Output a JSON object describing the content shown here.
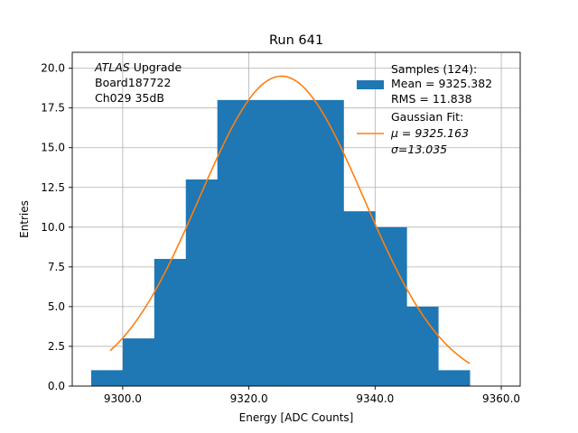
{
  "chart_data": {
    "type": "bar",
    "title": "Run 641",
    "xlabel": "Energy [ADC Counts]",
    "ylabel": "Entries",
    "xlim": [
      9292,
      9363
    ],
    "ylim": [
      0,
      21
    ],
    "grid": true,
    "xticks": [
      9300,
      9320,
      9340,
      9360
    ],
    "xtick_labels": [
      "9300.0",
      "9320.0",
      "9340.0",
      "9360.0"
    ],
    "yticks": [
      0,
      2.5,
      5,
      7.5,
      10,
      12.5,
      15,
      17.5,
      20
    ],
    "ytick_labels": [
      "0.0",
      "2.5",
      "5.0",
      "7.5",
      "10.0",
      "12.5",
      "15.0",
      "17.5",
      "20.0"
    ],
    "histogram": {
      "name": "Samples (124)",
      "color": "#1f77b4",
      "bin_edges": [
        9295,
        9300,
        9305,
        9310,
        9315,
        9320,
        9325,
        9330,
        9335,
        9340,
        9345,
        9350,
        9355
      ],
      "counts": [
        1,
        3,
        8,
        13,
        18,
        18,
        18,
        18,
        11,
        10,
        5,
        1
      ]
    },
    "fit": {
      "name": "Gaussian Fit",
      "color": "#ff7f0e",
      "mu": 9325.163,
      "sigma": 13.035,
      "amplitude": 19.5,
      "x_range": [
        9298,
        9355
      ]
    },
    "legend": {
      "placement": "top-right",
      "samples_title": "Samples (124):",
      "samples_mean": " Mean = 9325.382",
      "samples_rms": " RMS = 11.838",
      "fit_title": "Gaussian Fit:",
      "fit_mu": " μ = 9325.163",
      "fit_sigma": " σ=13.035"
    },
    "annotation": {
      "experiment": "ATLAS",
      "experiment_suffix": " Upgrade",
      "board": " Board187722",
      "channel": " Ch029 35dB"
    }
  }
}
